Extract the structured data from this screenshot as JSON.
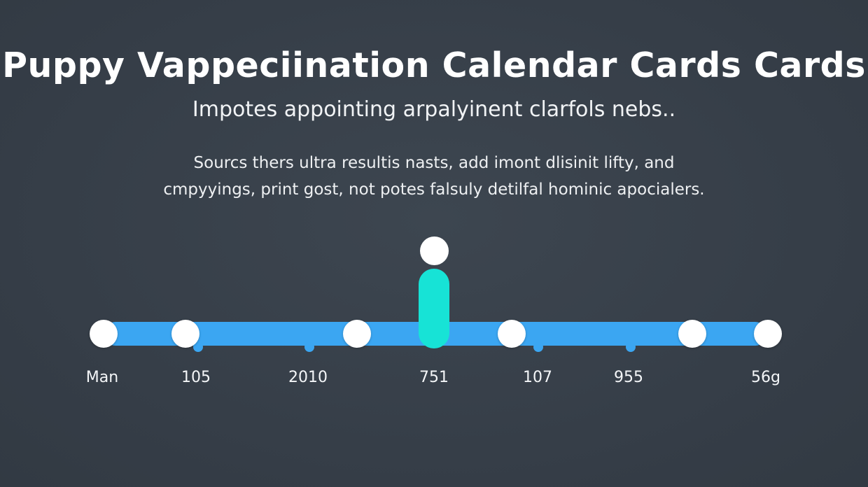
{
  "title": "Puppy Vappeciination Calendar Cards Cards",
  "subtitle": "Impotes appointing arpalyinent clarfols nebs..",
  "description": {
    "line1": "Sourcs thers ultra resultis nasts, add imont dlisinit lifty, and",
    "line2": "cmpyyings, print gost, not potes falsuly detilfal hominic apocialers."
  },
  "timeline": {
    "labels": [
      "Man",
      "105",
      "2010",
      "751",
      "107",
      "955",
      "56g"
    ],
    "highlighted": "751"
  },
  "colors": {
    "background": "#363e48",
    "track": "#3ba6f2",
    "highlight": "#17e3d6",
    "node": "#ffffff"
  }
}
